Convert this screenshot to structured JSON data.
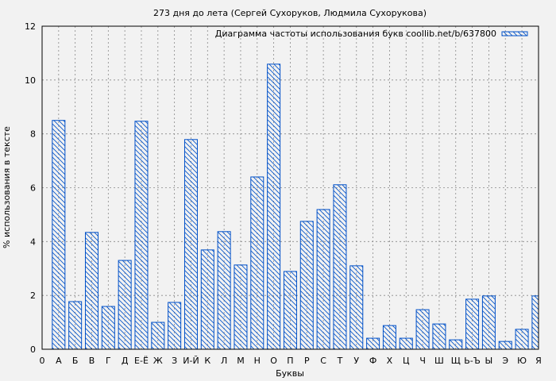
{
  "chart_data": {
    "type": "bar",
    "title": "273 дня до лета (Сергей Сухоруков, Людмила Сухорукова)",
    "xlabel": "Буквы",
    "ylabel": "% использования в тексте",
    "legend": {
      "label": "Диаграмма частоты использования букв coollib.net/b/637800",
      "position": "top-right"
    },
    "x_start_tick": "0",
    "categories": [
      "А",
      "Б",
      "В",
      "Г",
      "Д",
      "Е-Ё",
      "Ж",
      "З",
      "И-Й",
      "К",
      "Л",
      "М",
      "Н",
      "О",
      "П",
      "Р",
      "С",
      "Т",
      "У",
      "Ф",
      "Х",
      "Ц",
      "Ч",
      "Ш",
      "Щ",
      "Ь-Ъ",
      "Ы",
      "Э",
      "Ю",
      "Я"
    ],
    "values": [
      8.5,
      1.77,
      4.34,
      1.59,
      3.3,
      8.47,
      1.0,
      1.74,
      7.79,
      3.69,
      4.37,
      3.13,
      6.4,
      10.59,
      2.89,
      4.75,
      5.19,
      6.11,
      3.1,
      0.41,
      0.88,
      0.41,
      1.47,
      0.94,
      0.35,
      1.86,
      1.98,
      0.29,
      0.74,
      1.98
    ],
    "ylim": [
      0,
      12
    ],
    "yticks": [
      "0",
      "2",
      "4",
      "6",
      "8",
      "10",
      "12"
    ],
    "grid": true,
    "colors": {
      "bar_edge": "#0050c8",
      "background": "#f2f2f2"
    }
  }
}
